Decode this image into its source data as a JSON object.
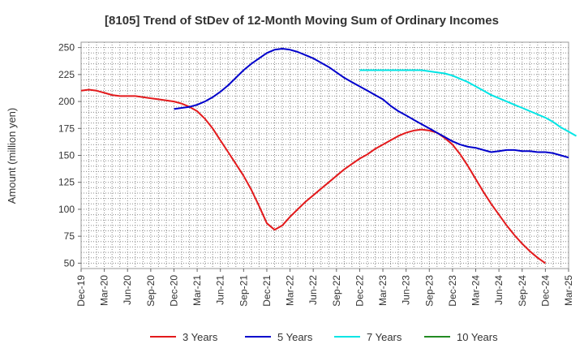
{
  "chart_data": {
    "type": "line",
    "title": "[8105]  Trend of StDev of 12-Month Moving Sum of Ordinary Incomes",
    "xlabel": "",
    "ylabel": "Amount (million yen)",
    "ylim": [
      45,
      255
    ],
    "yticks": [
      50,
      75,
      100,
      125,
      150,
      175,
      200,
      225,
      250
    ],
    "x_tick_labels": [
      "Dec-19",
      "Mar-20",
      "Jun-20",
      "Sep-20",
      "Dec-20",
      "Mar-21",
      "Jun-21",
      "Sep-21",
      "Dec-21",
      "Mar-22",
      "Jun-22",
      "Sep-22",
      "Dec-22",
      "Mar-23",
      "Jun-23",
      "Sep-23",
      "Dec-23",
      "Mar-24",
      "Jun-24",
      "Sep-24",
      "Dec-24",
      "Mar-25"
    ],
    "grid": true,
    "legend_position": "bottom",
    "series": [
      {
        "name": "3 Years",
        "color": "#e31a1c",
        "start_index": 0,
        "values": [
          210,
          211,
          210,
          208,
          206,
          205,
          205,
          205,
          204,
          203,
          202,
          201,
          200,
          198,
          195,
          191,
          184,
          175,
          164,
          153,
          142,
          131,
          118,
          103,
          87,
          81,
          85,
          93,
          100,
          107,
          113,
          119,
          125,
          131,
          137,
          142,
          147,
          151,
          156,
          160,
          164,
          168,
          171,
          173,
          174,
          173,
          171,
          166,
          160,
          151,
          140,
          128,
          116,
          105,
          95,
          85,
          76,
          68,
          61,
          55,
          50
        ]
      },
      {
        "name": "5 Years",
        "color": "#0000cc",
        "start_index": 12,
        "values": [
          193,
          194,
          195,
          197,
          200,
          204,
          209,
          215,
          222,
          229,
          235,
          240,
          245,
          248,
          249,
          248,
          246,
          243,
          240,
          236,
          232,
          227,
          222,
          218,
          214,
          210,
          206,
          202,
          196,
          191,
          187,
          183,
          179,
          175,
          171,
          167,
          163,
          160,
          158,
          157,
          155,
          153,
          154,
          155,
          155,
          154,
          154,
          153,
          153,
          152,
          150,
          148
        ]
      },
      {
        "name": "7 Years",
        "color": "#00e5e5",
        "start_index": 36,
        "values": [
          229,
          229,
          229,
          229,
          229,
          229,
          229,
          229,
          229,
          228,
          227,
          226,
          224,
          221,
          218,
          214,
          210,
          206,
          203,
          200,
          197,
          194,
          191,
          188,
          185,
          181,
          176,
          172,
          168
        ]
      },
      {
        "name": "10 Years",
        "color": "#228b22",
        "start_index": 0,
        "values": []
      }
    ]
  }
}
